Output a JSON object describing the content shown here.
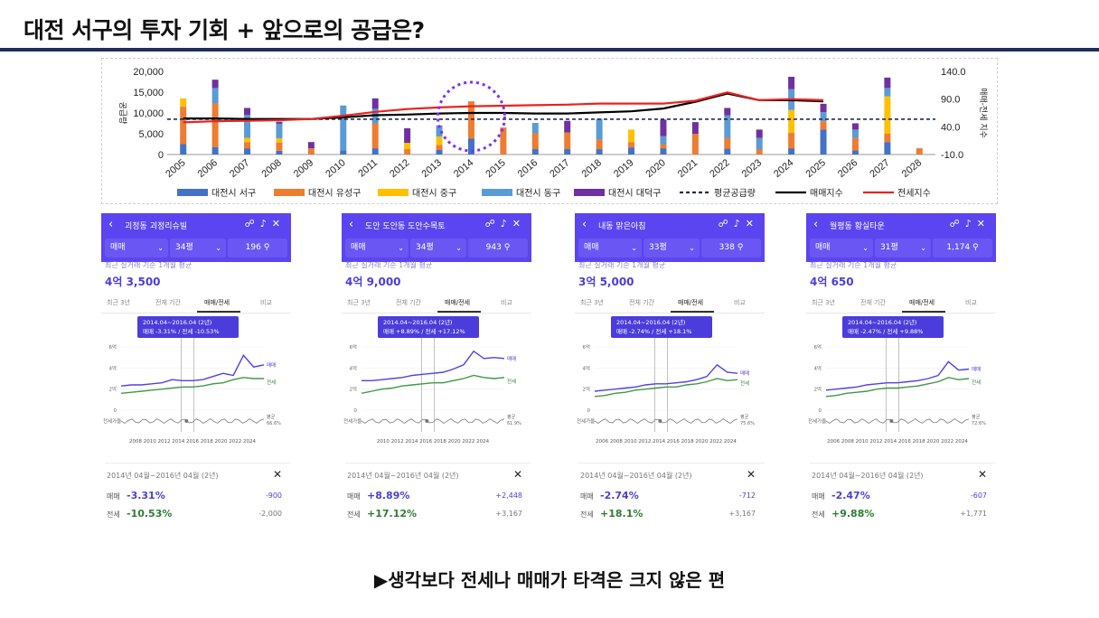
{
  "title": "대전 서구의 투자 기회 + 앞으로의 공급은?",
  "bottom_note": "▶생각보다 전세나 매매가 타격은 크지 않은 편",
  "chart_data": {
    "type": "bar",
    "title": "",
    "categories": [
      "2005",
      "2006",
      "2007",
      "2008",
      "2009",
      "2010",
      "2011",
      "2012",
      "2013",
      "2014",
      "2015",
      "2016",
      "2017",
      "2018",
      "2019",
      "2020",
      "2021",
      "2022",
      "2023",
      "2024",
      "2025",
      "2026",
      "2027",
      "2028"
    ],
    "ylim": [
      0,
      20000
    ],
    "y_ticks": [
      "20,000",
      "15,000",
      "10,000",
      "5,000",
      "0"
    ],
    "ylabel": "공급량",
    "y2lim": [
      -10,
      140
    ],
    "y2_ticks": [
      "140.0",
      "90.0",
      "40.0",
      "-10.0"
    ],
    "y2label": "매매-전세 지수",
    "stacked": true,
    "series": [
      {
        "name": "대전시 서구",
        "color": "#4472c4",
        "values": [
          2500,
          1800,
          1500,
          900,
          0,
          1000,
          1500,
          0,
          1100,
          3800,
          0,
          1300,
          1300,
          1300,
          1700,
          1500,
          0,
          1400,
          0,
          1500,
          6000,
          1000,
          3000,
          0
        ]
      },
      {
        "name": "대전시 유성구",
        "color": "#ed7d31",
        "values": [
          9000,
          10500,
          1500,
          2000,
          1500,
          0,
          6000,
          1300,
          1200,
          9000,
          6500,
          3800,
          4000,
          2300,
          1300,
          1000,
          5000,
          2500,
          1200,
          3700,
          2000,
          3000,
          2000,
          1500
        ]
      },
      {
        "name": "대전시 중구",
        "color": "#ffc000",
        "values": [
          2000,
          0,
          1000,
          1000,
          0,
          0,
          0,
          1500,
          2000,
          0,
          0,
          0,
          0,
          0,
          3000,
          0,
          0,
          0,
          0,
          5500,
          0,
          0,
          9000,
          0
        ]
      },
      {
        "name": "대전시 동구",
        "color": "#5b9bd5",
        "values": [
          0,
          3700,
          5500,
          3500,
          0,
          10800,
          3500,
          0,
          2700,
          0,
          0,
          2500,
          0,
          5000,
          0,
          1900,
          0,
          5500,
          2800,
          5000,
          2200,
          2000,
          2000,
          0
        ]
      },
      {
        "name": "대전시 대덕구",
        "color": "#7030a0",
        "values": [
          0,
          2000,
          1700,
          500,
          1500,
          0,
          2500,
          3500,
          0,
          0,
          0,
          0,
          2800,
          0,
          0,
          4000,
          2800,
          1800,
          2000,
          3000,
          2000,
          1500,
          2500,
          0
        ]
      }
    ],
    "lines": [
      {
        "name": "평균공급량",
        "color": "#1f2e5a",
        "style": "dashed",
        "axis": "left",
        "value": 8500
      },
      {
        "name": "매매지수",
        "color": "#000000",
        "style": "solid",
        "axis": "right",
        "values": [
          55,
          55,
          54,
          54,
          54,
          57,
          61,
          62,
          64,
          65,
          65,
          64,
          64,
          66,
          68,
          73,
          85,
          100,
          88,
          88,
          86,
          null,
          null,
          null
        ]
      },
      {
        "name": "전세지수",
        "color": "#e8231f",
        "style": "solid",
        "axis": "right",
        "values": [
          48,
          50,
          51,
          52,
          54,
          60,
          67,
          72,
          75,
          77,
          78,
          79,
          80,
          82,
          82,
          82,
          87,
          102,
          88,
          90,
          88,
          null,
          null,
          null
        ]
      }
    ],
    "legend_position": "bottom"
  },
  "cards": [
    {
      "name": "괴정동 괴정리슈빌",
      "type": "매매",
      "size": "34평",
      "count": "196",
      "caption": "최근 실거래 기준 1개월 평균",
      "price": "4억 3,500",
      "tabs": [
        "최근 3년",
        "전체 기간",
        "매매/전세",
        "비교"
      ],
      "tooltip_title": "2014.04~2016.04 (2년)",
      "tooltip_body": "매매 -3.31%  /  전세 -10.53%",
      "y_ticks": [
        "6억",
        "4억",
        "2억",
        "0"
      ],
      "x_ticks": "2008 2010 2012 2014 2016 2018 2020 2022 2024",
      "side_sale": "매매",
      "side_jeonse": "전세",
      "gap_label": "전세가율",
      "avg_label": "평균",
      "avg_value": "66.6%",
      "period": "2014년 04월~2016년 04월 (2년)",
      "sale_label": "매매",
      "sale_pct": "-3.31%",
      "sale_amt": "-900",
      "jeonse_label": "전세",
      "jeonse_pct": "-10.53%",
      "jeonse_amt": "-2,000",
      "series_sale": [
        2.3,
        2.4,
        2.4,
        2.5,
        2.6,
        2.9,
        2.8,
        2.8,
        2.9,
        3.2,
        3.5,
        3.3,
        5.2,
        4.1,
        4.3
      ],
      "series_jeonse": [
        1.6,
        1.7,
        1.8,
        1.9,
        2.0,
        2.1,
        2.2,
        2.2,
        2.3,
        2.5,
        2.6,
        2.9,
        3.1,
        3.0,
        3.0
      ]
    },
    {
      "name": "도안 도안동 도안수목토",
      "type": "매매",
      "size": "34평",
      "count": "943",
      "caption": "최근 실거래 기준 1개월 평균",
      "price": "4억 9,000",
      "tabs": [
        "최근 3년",
        "전체 기간",
        "매매/전세",
        "비교"
      ],
      "tooltip_title": "2014.04~2016.04 (2년)",
      "tooltip_body": "매매 +8.89%  /  전세 +17.12%",
      "y_ticks": [
        "6억",
        "4억",
        "2억",
        "0"
      ],
      "x_ticks": "2010 2012 2014 2016 2018 2020 2022 2024",
      "side_sale": "매매",
      "side_jeonse": "전세",
      "gap_label": "전세가율",
      "avg_label": "평균",
      "avg_value": "61.9%",
      "period": "2014년 04월~2016년 04월 (2년)",
      "sale_label": "매매",
      "sale_pct": "+8.89%",
      "sale_amt": "+2,448",
      "jeonse_label": "전세",
      "jeonse_pct": "+17.12%",
      "jeonse_amt": "+3,167",
      "series_sale": [
        2.8,
        2.8,
        2.9,
        3.0,
        3.1,
        3.3,
        3.4,
        3.5,
        3.6,
        3.9,
        4.3,
        5.6,
        4.9,
        5.0,
        4.9
      ],
      "series_jeonse": [
        1.6,
        1.8,
        2.0,
        2.1,
        2.3,
        2.4,
        2.5,
        2.6,
        2.6,
        2.8,
        3.0,
        3.3,
        3.1,
        3.0,
        3.1
      ]
    },
    {
      "name": "내동 맑은아침",
      "type": "매매",
      "size": "33평",
      "count": "338",
      "caption": "최근 실거래 기준 1개월 평균",
      "price": "3억 5,000",
      "tabs": [
        "최근 3년",
        "전체 기간",
        "매매/전세",
        "비교"
      ],
      "tooltip_title": "2014.04~2016.04 (2년)",
      "tooltip_body": "매매 -2.74%  /  전세 +18.1%",
      "y_ticks": [
        "6억",
        "4억",
        "2억",
        "0"
      ],
      "x_ticks": "2006 2008 2010 2012 2014 2016 2018 2020 2022 2024",
      "side_sale": "매매",
      "side_jeonse": "전세",
      "gap_label": "전세가율",
      "avg_label": "평균",
      "avg_value": "75.6%",
      "period": "2014년 04월~2016년 04월 (2년)",
      "sale_label": "매매",
      "sale_pct": "-2.74%",
      "sale_amt": "-712",
      "jeonse_label": "전세",
      "jeonse_pct": "+18.1%",
      "jeonse_amt": "+3,167",
      "series_sale": [
        1.8,
        1.9,
        2.0,
        2.1,
        2.2,
        2.4,
        2.5,
        2.5,
        2.6,
        2.7,
        2.9,
        3.2,
        4.3,
        3.6,
        3.5
      ],
      "series_jeonse": [
        1.3,
        1.4,
        1.6,
        1.7,
        1.9,
        2.0,
        2.1,
        2.2,
        2.2,
        2.4,
        2.5,
        2.7,
        3.0,
        2.8,
        2.9
      ]
    },
    {
      "name": "월평동 황실타운",
      "type": "매매",
      "size": "31평",
      "count": "1,174",
      "caption": "최근 실거래 기준 1개월 평균",
      "price": "4억 650",
      "tabs": [
        "최근 3년",
        "전체 기간",
        "매매/전세",
        "비교"
      ],
      "tooltip_title": "2014.04~2016.04 (2년)",
      "tooltip_body": "매매 -2.47%  /  전세 +9.88%",
      "y_ticks": [
        "6억",
        "4억",
        "2억",
        "0"
      ],
      "x_ticks": "2006 2008 2010 2012 2014 2016 2018 2020 2022 2024",
      "side_sale": "매매",
      "side_jeonse": "전세",
      "gap_label": "전세가율",
      "avg_label": "평균",
      "avg_value": "72.6%",
      "period": "2014년 04월~2016년 04월 (2년)",
      "sale_label": "매매",
      "sale_pct": "-2.47%",
      "sale_amt": "-607",
      "jeonse_label": "전세",
      "jeonse_pct": "+9.88%",
      "jeonse_amt": "+1,771",
      "series_sale": [
        1.9,
        2.0,
        2.1,
        2.2,
        2.4,
        2.5,
        2.6,
        2.6,
        2.7,
        2.8,
        3.0,
        3.3,
        4.6,
        3.8,
        3.9
      ],
      "series_jeonse": [
        1.3,
        1.4,
        1.6,
        1.7,
        1.8,
        2.0,
        2.1,
        2.1,
        2.2,
        2.3,
        2.5,
        2.7,
        3.1,
        2.9,
        3.0
      ]
    }
  ]
}
